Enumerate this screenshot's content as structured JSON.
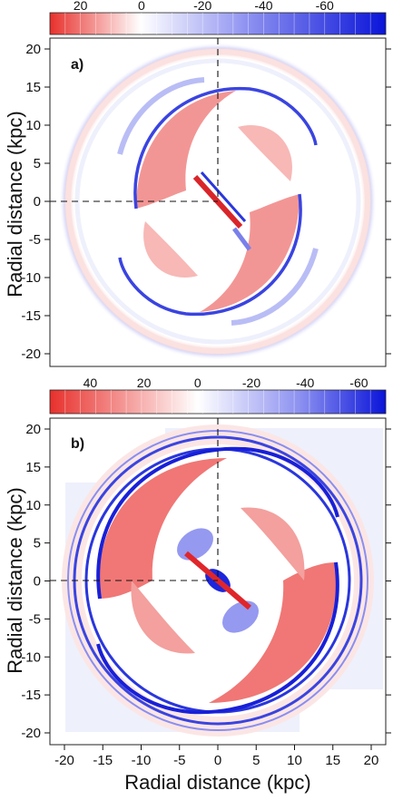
{
  "panels": [
    {
      "label": "a)",
      "ylabel": "Radial distance (kpc)",
      "y_ticks": [
        "20",
        "15",
        "10",
        "5",
        "0",
        "-5",
        "-10",
        "-15",
        "-20"
      ],
      "colorbar_ticks": [
        "20",
        "0",
        "-20",
        "-40",
        "-60"
      ],
      "colorbar_range": [
        30,
        -80
      ],
      "colors": {
        "positive": "#e8302c",
        "negative": "#0a14d8",
        "zero": "#ffffff"
      }
    },
    {
      "label": "b)",
      "ylabel": "Radial distance (kpc)",
      "y_ticks": [
        "20",
        "15",
        "10",
        "5",
        "0",
        "-5",
        "-10",
        "-15",
        "-20"
      ],
      "x_ticks": [
        "-20",
        "-15",
        "-10",
        "-5",
        "0",
        "5",
        "10",
        "15",
        "20"
      ],
      "colorbar_ticks": [
        "40",
        "20",
        "0",
        "-20",
        "-40",
        "-60"
      ],
      "colorbar_range": [
        55,
        -70
      ],
      "colors": {
        "positive": "#e8302c",
        "negative": "#0a14d8",
        "zero": "#ffffff"
      }
    }
  ],
  "xlabel": "Radial distance (kpc)"
}
